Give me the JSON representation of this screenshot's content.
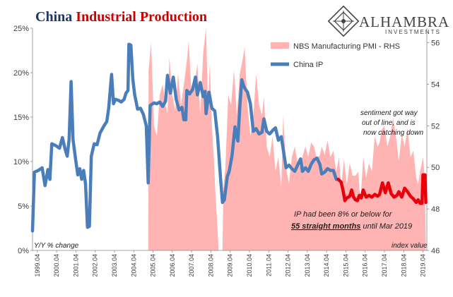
{
  "title": {
    "part1": "China",
    "part2": "Industrial Production"
  },
  "logo": {
    "name": "ALHAMBRA",
    "sub": "INVESTMENTS"
  },
  "colors": {
    "ip_line": "#4a7ebb",
    "ip_recent": "#e8000b",
    "pmi_fill": "#ffb3b3",
    "title_blue": "#1f3864",
    "title_red": "#cc0000"
  },
  "annotations": {
    "left_axis_note": "Y/Y % change",
    "right_axis_note": "index value",
    "sentiment_1": "sentiment got way",
    "sentiment_2": "out of line, and is",
    "sentiment_3": "now catching down",
    "ip_note_1": "IP had been 8% or below for",
    "ip_note_2_bold": "55 straight months",
    "ip_note_2_rest": " until Mar 2019"
  },
  "chart_data": {
    "type": "line",
    "title": "China Industrial Production",
    "x_tick_labels": [
      "1999.04",
      "2000.04",
      "2001.04",
      "2002.04",
      "2003.04",
      "2004.04",
      "2005.04",
      "2006.04",
      "2007.04",
      "2008.04",
      "2009.04",
      "2010.04",
      "2011.04",
      "2012.04",
      "2013.04",
      "2014.04",
      "2015.04",
      "2016.04",
      "2017.04",
      "2018.04",
      "2019.04"
    ],
    "y_left": {
      "label": "Y/Y % change",
      "ticks": [
        "0%",
        "5%",
        "10%",
        "15%",
        "20%",
        "25%"
      ],
      "range": [
        0,
        25
      ]
    },
    "y_right": {
      "label": "index value",
      "ticks": [
        "46",
        "48",
        "50",
        "52",
        "54",
        "56"
      ],
      "range": [
        46,
        56.7
      ]
    },
    "legend": [
      {
        "name": "NBS Manufacturing PMI - RHS",
        "style": "area"
      },
      {
        "name": "China IP",
        "style": "line"
      }
    ],
    "series": [
      {
        "name": "China IP",
        "axis": "left",
        "points": [
          [
            1999.0,
            2.2
          ],
          [
            1999.1,
            8.8
          ],
          [
            1999.3,
            9.0
          ],
          [
            1999.5,
            9.3
          ],
          [
            1999.65,
            7.3
          ],
          [
            1999.8,
            9.1
          ],
          [
            1999.9,
            8.0
          ],
          [
            2000.0,
            12.0
          ],
          [
            2000.2,
            11.8
          ],
          [
            2000.4,
            11.5
          ],
          [
            2000.55,
            12.7
          ],
          [
            2000.7,
            11.3
          ],
          [
            2000.8,
            10.6
          ],
          [
            2000.9,
            12.5
          ],
          [
            2001.0,
            19.0
          ],
          [
            2001.1,
            12.5
          ],
          [
            2001.25,
            10.0
          ],
          [
            2001.35,
            8.5
          ],
          [
            2001.45,
            9.2
          ],
          [
            2001.55,
            8.0
          ],
          [
            2001.65,
            9.0
          ],
          [
            2001.75,
            7.5
          ],
          [
            2001.85,
            2.6
          ],
          [
            2001.95,
            2.7
          ],
          [
            2002.05,
            10.6
          ],
          [
            2002.2,
            12.0
          ],
          [
            2002.35,
            11.9
          ],
          [
            2002.5,
            13.2
          ],
          [
            2002.7,
            14.0
          ],
          [
            2002.85,
            14.5
          ],
          [
            2002.95,
            16.0
          ],
          [
            2003.1,
            19.8
          ],
          [
            2003.2,
            16.5
          ],
          [
            2003.3,
            17.0
          ],
          [
            2003.45,
            16.9
          ],
          [
            2003.6,
            16.7
          ],
          [
            2003.75,
            17.0
          ],
          [
            2003.85,
            17.7
          ],
          [
            2003.95,
            18.0
          ],
          [
            2004.0,
            23.2
          ],
          [
            2004.1,
            23.1
          ],
          [
            2004.2,
            19.3
          ],
          [
            2004.3,
            17.5
          ],
          [
            2004.45,
            15.9
          ],
          [
            2004.6,
            16.0
          ],
          [
            2004.75,
            15.3
          ],
          [
            2004.9,
            14.0
          ],
          [
            2005.0,
            7.6
          ],
          [
            2005.1,
            16.3
          ],
          [
            2005.3,
            16.6
          ],
          [
            2005.45,
            16.5
          ],
          [
            2005.6,
            16.7
          ],
          [
            2005.75,
            16.2
          ],
          [
            2005.9,
            16.8
          ],
          [
            2006.0,
            19.7
          ],
          [
            2006.15,
            17.7
          ],
          [
            2006.3,
            19.5
          ],
          [
            2006.45,
            17.0
          ],
          [
            2006.6,
            15.8
          ],
          [
            2006.75,
            16.1
          ],
          [
            2006.85,
            14.7
          ],
          [
            2006.95,
            14.7
          ],
          [
            2007.0,
            18.0
          ],
          [
            2007.15,
            17.6
          ],
          [
            2007.3,
            18.1
          ],
          [
            2007.45,
            19.5
          ],
          [
            2007.55,
            17.5
          ],
          [
            2007.7,
            18.9
          ],
          [
            2007.85,
            17.3
          ],
          [
            2007.95,
            17.9
          ],
          [
            2008.0,
            15.4
          ],
          [
            2008.15,
            17.8
          ],
          [
            2008.3,
            16.0
          ],
          [
            2008.45,
            15.7
          ],
          [
            2008.6,
            12.8
          ],
          [
            2008.75,
            8.2
          ],
          [
            2008.85,
            5.4
          ],
          [
            2008.95,
            5.7
          ],
          [
            2009.1,
            8.3
          ],
          [
            2009.2,
            8.9
          ],
          [
            2009.35,
            10.7
          ],
          [
            2009.5,
            13.9
          ],
          [
            2009.65,
            12.3
          ],
          [
            2009.75,
            16.1
          ],
          [
            2009.85,
            19.2
          ],
          [
            2009.95,
            18.5
          ],
          [
            2010.05,
            18.1
          ],
          [
            2010.15,
            17.8
          ],
          [
            2010.3,
            16.5
          ],
          [
            2010.45,
            13.4
          ],
          [
            2010.6,
            13.7
          ],
          [
            2010.75,
            13.1
          ],
          [
            2010.9,
            13.3
          ],
          [
            2011.0,
            14.8
          ],
          [
            2011.15,
            13.4
          ],
          [
            2011.3,
            13.1
          ],
          [
            2011.45,
            13.5
          ],
          [
            2011.6,
            13.8
          ],
          [
            2011.75,
            12.4
          ],
          [
            2011.9,
            12.8
          ],
          [
            2012.0,
            11.4
          ],
          [
            2012.15,
            9.3
          ],
          [
            2012.3,
            9.6
          ],
          [
            2012.45,
            9.2
          ],
          [
            2012.6,
            8.9
          ],
          [
            2012.75,
            9.6
          ],
          [
            2012.9,
            10.3
          ],
          [
            2013.0,
            8.9
          ],
          [
            2013.15,
            9.3
          ],
          [
            2013.3,
            8.9
          ],
          [
            2013.45,
            9.7
          ],
          [
            2013.6,
            10.2
          ],
          [
            2013.75,
            10.4
          ],
          [
            2013.9,
            9.7
          ],
          [
            2014.0,
            8.6
          ],
          [
            2014.15,
            8.8
          ],
          [
            2014.3,
            9.2
          ],
          [
            2014.45,
            9.0
          ],
          [
            2014.6,
            9.0
          ],
          [
            2014.75,
            8.0
          ],
          [
            2014.85,
            8.0
          ]
        ]
      },
      {
        "name": "China IP (recent)",
        "axis": "left",
        "points": [
          [
            2014.85,
            8.0
          ],
          [
            2015.0,
            7.7
          ],
          [
            2015.1,
            6.8
          ],
          [
            2015.2,
            5.6
          ],
          [
            2015.3,
            5.9
          ],
          [
            2015.45,
            6.1
          ],
          [
            2015.55,
            6.8
          ],
          [
            2015.65,
            6.0
          ],
          [
            2015.75,
            5.7
          ],
          [
            2015.85,
            5.6
          ],
          [
            2015.95,
            6.2
          ],
          [
            2016.05,
            5.9
          ],
          [
            2016.15,
            6.8
          ],
          [
            2016.3,
            6.0
          ],
          [
            2016.45,
            6.2
          ],
          [
            2016.6,
            6.0
          ],
          [
            2016.75,
            6.3
          ],
          [
            2016.9,
            6.1
          ],
          [
            2017.0,
            6.3
          ],
          [
            2017.15,
            7.6
          ],
          [
            2017.3,
            6.5
          ],
          [
            2017.45,
            7.6
          ],
          [
            2017.6,
            6.4
          ],
          [
            2017.75,
            6.0
          ],
          [
            2017.9,
            6.2
          ],
          [
            2018.0,
            6.6
          ],
          [
            2018.15,
            6.0
          ],
          [
            2018.3,
            7.0
          ],
          [
            2018.45,
            6.6
          ],
          [
            2018.6,
            6.1
          ],
          [
            2018.75,
            5.8
          ],
          [
            2018.9,
            5.4
          ],
          [
            2019.0,
            5.7
          ],
          [
            2019.1,
            5.3
          ],
          [
            2019.2,
            5.3
          ],
          [
            2019.25,
            8.5
          ],
          [
            2019.35,
            8.5
          ],
          [
            2019.4,
            5.4
          ]
        ]
      },
      {
        "name": "NBS Manufacturing PMI - RHS",
        "axis": "right",
        "points": [
          [
            2005.0,
            46.0
          ],
          [
            2005.02,
            54.7
          ],
          [
            2005.15,
            56.0
          ],
          [
            2005.3,
            52.0
          ],
          [
            2005.45,
            51.5
          ],
          [
            2005.6,
            53.5
          ],
          [
            2005.75,
            54.0
          ],
          [
            2005.9,
            53.0
          ],
          [
            2006.0,
            52.6
          ],
          [
            2006.1,
            55.3
          ],
          [
            2006.25,
            53.5
          ],
          [
            2006.4,
            52.7
          ],
          [
            2006.55,
            54.5
          ],
          [
            2006.7,
            53.0
          ],
          [
            2006.85,
            54.0
          ],
          [
            2007.0,
            55.1
          ],
          [
            2007.1,
            56.1
          ],
          [
            2007.25,
            53.5
          ],
          [
            2007.4,
            54.0
          ],
          [
            2007.55,
            55.0
          ],
          [
            2007.7,
            52.5
          ],
          [
            2007.85,
            55.5
          ],
          [
            2008.0,
            56.7
          ],
          [
            2008.1,
            53.0
          ],
          [
            2008.2,
            55.0
          ],
          [
            2008.3,
            52.0
          ],
          [
            2008.4,
            50.5
          ],
          [
            2008.5,
            48.5
          ],
          [
            2008.6,
            47.0
          ],
          [
            2008.65,
            46.0
          ],
          [
            2008.85,
            46.0
          ],
          [
            2008.9,
            49.0
          ],
          [
            2009.0,
            50.0
          ],
          [
            2009.15,
            53.5
          ],
          [
            2009.3,
            53.0
          ],
          [
            2009.45,
            54.7
          ],
          [
            2009.6,
            52.5
          ],
          [
            2009.75,
            54.5
          ],
          [
            2009.9,
            55.2
          ],
          [
            2010.0,
            55.8
          ],
          [
            2010.15,
            53.0
          ],
          [
            2010.3,
            51.5
          ],
          [
            2010.45,
            52.5
          ],
          [
            2010.6,
            54.5
          ],
          [
            2010.75,
            53.0
          ],
          [
            2010.9,
            52.5
          ],
          [
            2011.0,
            53.4
          ],
          [
            2011.15,
            51.0
          ],
          [
            2011.3,
            50.5
          ],
          [
            2011.45,
            51.5
          ],
          [
            2011.6,
            49.8
          ],
          [
            2011.75,
            50.5
          ],
          [
            2011.9,
            49.0
          ],
          [
            2012.0,
            52.5
          ],
          [
            2012.15,
            50.0
          ],
          [
            2012.3,
            49.2
          ],
          [
            2012.45,
            50.5
          ],
          [
            2012.6,
            51.0
          ],
          [
            2012.75,
            50.2
          ],
          [
            2012.9,
            50.0
          ],
          [
            2013.0,
            50.5
          ],
          [
            2013.15,
            51.0
          ],
          [
            2013.3,
            50.5
          ],
          [
            2013.45,
            51.2
          ],
          [
            2013.6,
            51.0
          ],
          [
            2013.75,
            50.4
          ],
          [
            2013.9,
            50.6
          ],
          [
            2014.0,
            51.0
          ],
          [
            2014.15,
            50.6
          ],
          [
            2014.3,
            51.3
          ],
          [
            2014.45,
            50.5
          ],
          [
            2014.6,
            50.8
          ],
          [
            2014.75,
            49.8
          ],
          [
            2014.9,
            50.5
          ],
          [
            2015.0,
            49.0
          ],
          [
            2015.15,
            50.4
          ],
          [
            2015.3,
            49.2
          ],
          [
            2015.45,
            50.2
          ],
          [
            2015.6,
            49.6
          ],
          [
            2015.75,
            49.6
          ],
          [
            2015.9,
            49.8
          ],
          [
            2016.0,
            48.3
          ],
          [
            2016.15,
            50.5
          ],
          [
            2016.3,
            49.5
          ],
          [
            2016.45,
            50.2
          ],
          [
            2016.6,
            49.8
          ],
          [
            2016.75,
            51.5
          ],
          [
            2016.9,
            51.0
          ],
          [
            2017.0,
            51.2
          ],
          [
            2017.1,
            51.8
          ],
          [
            2017.25,
            52.0
          ],
          [
            2017.4,
            51.0
          ],
          [
            2017.55,
            51.5
          ],
          [
            2017.7,
            52.4
          ],
          [
            2017.85,
            51.5
          ],
          [
            2018.0,
            50.3
          ],
          [
            2018.15,
            51.6
          ],
          [
            2018.3,
            51.0
          ],
          [
            2018.45,
            51.9
          ],
          [
            2018.6,
            50.5
          ],
          [
            2018.75,
            50.8
          ],
          [
            2018.9,
            49.5
          ],
          [
            2019.0,
            49.2
          ],
          [
            2019.1,
            49.8
          ],
          [
            2019.25,
            50.5
          ],
          [
            2019.35,
            49.4
          ],
          [
            2019.4,
            46.0
          ]
        ]
      }
    ],
    "grid": false
  }
}
